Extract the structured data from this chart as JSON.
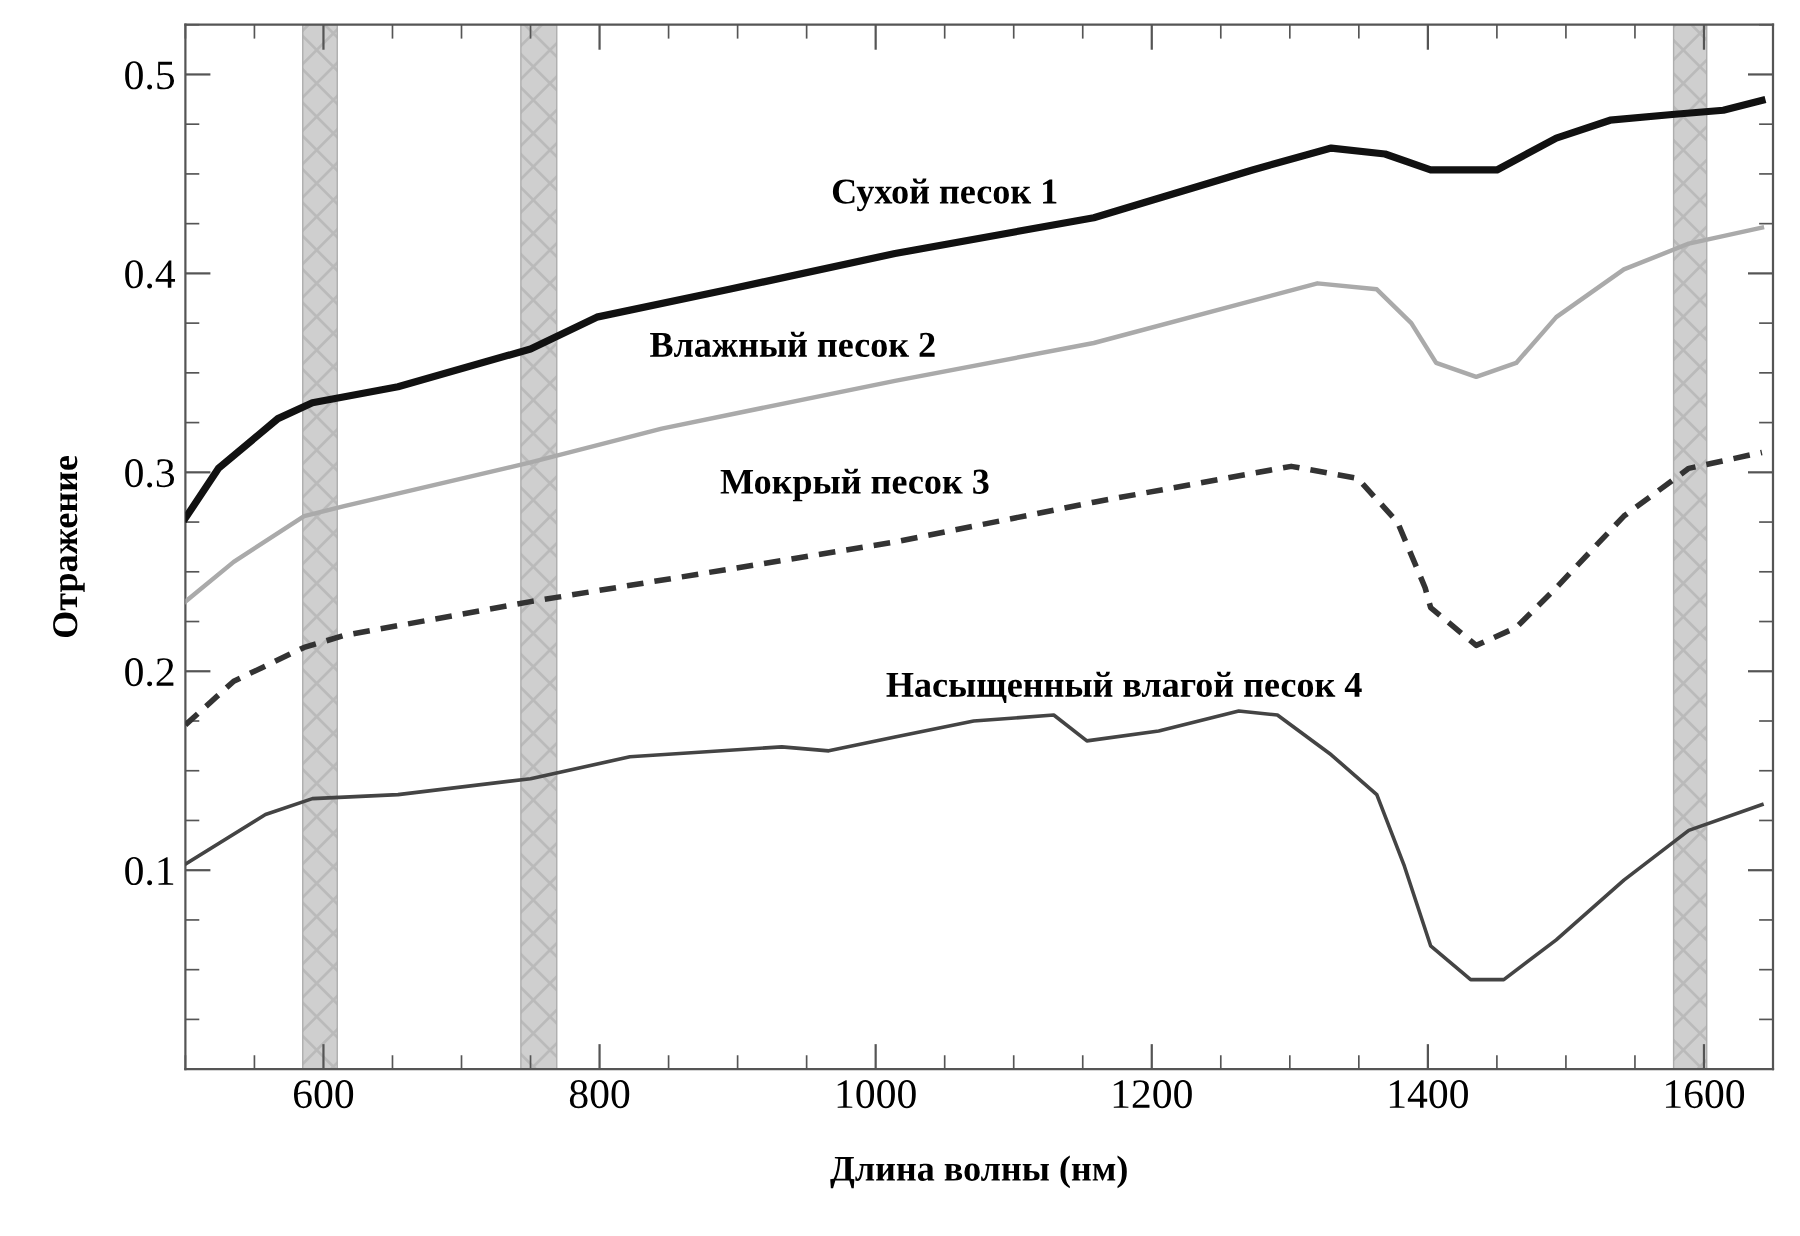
{
  "chart_data": {
    "type": "line",
    "xlabel": "Длина волны (нм)",
    "ylabel": "Отражение",
    "xlim": [
      500,
      1650
    ],
    "ylim": [
      0,
      0.525
    ],
    "xticks": [
      600,
      800,
      1000,
      1200,
      1400,
      1600
    ],
    "yticks": [
      0.1,
      0.2,
      0.3,
      0.4,
      0.5
    ],
    "grid": false,
    "legend": false,
    "marker": "none",
    "bands": [
      {
        "axis": "x",
        "from": 585,
        "to": 610,
        "color": "#b0b0b0"
      },
      {
        "axis": "x",
        "from": 743,
        "to": 769,
        "color": "#b0b0b0"
      },
      {
        "axis": "x",
        "from": 1578,
        "to": 1602,
        "color": "#b0b0b0"
      }
    ],
    "series": [
      {
        "name": "Сухой песок 1",
        "color": "#111111",
        "line_style": "solid",
        "x": [
          500,
          524,
          567,
          592,
          654,
          750,
          798,
          894,
          1014,
          1158,
          1273,
          1330,
          1369,
          1402,
          1450,
          1493,
          1532,
          1579,
          1614,
          1642
        ],
        "values": [
          0.277,
          0.302,
          0.327,
          0.335,
          0.343,
          0.362,
          0.378,
          0.392,
          0.41,
          0.428,
          0.452,
          0.463,
          0.46,
          0.452,
          0.452,
          0.468,
          0.477,
          0.48,
          0.482,
          0.487
        ]
      },
      {
        "name": "Влажный песок 2",
        "color": "#aaaaaa",
        "line_style": "solid",
        "x": [
          500,
          535,
          586,
          615,
          750,
          845,
          1014,
          1158,
          1320,
          1363,
          1388,
          1406,
          1435,
          1464,
          1493,
          1542,
          1589,
          1642
        ],
        "values": [
          0.235,
          0.255,
          0.278,
          0.283,
          0.305,
          0.322,
          0.346,
          0.365,
          0.395,
          0.392,
          0.375,
          0.355,
          0.348,
          0.355,
          0.378,
          0.402,
          0.415,
          0.423
        ]
      },
      {
        "name": "Мокрый песок 3",
        "color": "#333333",
        "line_style": "dashed",
        "x": [
          500,
          535,
          586,
          615,
          750,
          1014,
          1158,
          1301,
          1349,
          1378,
          1398,
          1402,
          1435,
          1464,
          1493,
          1542,
          1589,
          1642
        ],
        "values": [
          0.173,
          0.195,
          0.212,
          0.218,
          0.235,
          0.265,
          0.285,
          0.303,
          0.297,
          0.275,
          0.242,
          0.232,
          0.213,
          0.222,
          0.242,
          0.278,
          0.302,
          0.31
        ]
      },
      {
        "name": "Насыщенный влагой песок 4",
        "color": "#444444",
        "line_style": "solid",
        "x": [
          500,
          558,
          592,
          654,
          750,
          822,
          932,
          966,
          1014,
          1071,
          1129,
          1153,
          1205,
          1263,
          1291,
          1330,
          1363,
          1383,
          1402,
          1431,
          1455,
          1493,
          1542,
          1589,
          1642
        ],
        "values": [
          0.103,
          0.128,
          0.136,
          0.138,
          0.146,
          0.157,
          0.162,
          0.16,
          0.167,
          0.175,
          0.178,
          0.165,
          0.17,
          0.18,
          0.178,
          0.158,
          0.138,
          0.102,
          0.062,
          0.045,
          0.045,
          0.065,
          0.095,
          0.12,
          0.133
        ]
      }
    ]
  }
}
